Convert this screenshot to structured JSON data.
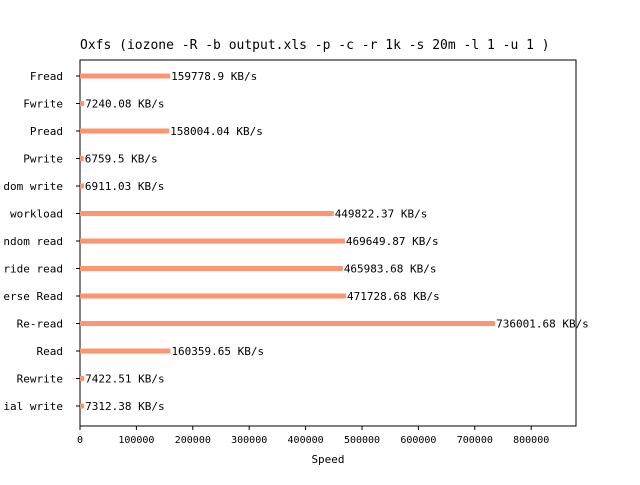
{
  "chart_data": {
    "type": "bar",
    "orientation": "horizontal",
    "title": "Oxfs (iozone -R -b output.xls -p -c -r 1k -s 20m -l 1 -u 1 )",
    "xlabel": "Speed",
    "ylabel": "",
    "unit": "KB/s",
    "xlim": [
      0,
      880000
    ],
    "xticks": [
      0,
      100000,
      200000,
      300000,
      400000,
      500000,
      600000,
      700000,
      800000
    ],
    "categories": [
      "Fread",
      "Fwrite",
      "Pread",
      "Pwrite",
      "dom write",
      "workload",
      "ndom read",
      "ride read",
      "erse Read",
      "Re-read",
      "Read",
      "Rewrite",
      "ial write"
    ],
    "values": [
      159778.9,
      7240.08,
      158004.04,
      6759.5,
      6911.03,
      449822.37,
      469649.87,
      465983.68,
      471728.68,
      736001.68,
      160359.65,
      7422.51,
      7312.38
    ],
    "data_labels": [
      "159778.9 KB/s",
      "7240.08 KB/s",
      "158004.04 KB/s",
      "6759.5 KB/s",
      "6911.03 KB/s",
      "449822.37 KB/s",
      "469649.87 KB/s",
      "465983.68 KB/s",
      "471728.68 KB/s",
      "736001.68 KB/s",
      "160359.65 KB/s",
      "7422.51 KB/s",
      "7312.38 KB/s"
    ],
    "bar_color": "#ff9470",
    "grid": false,
    "legend": "none"
  }
}
